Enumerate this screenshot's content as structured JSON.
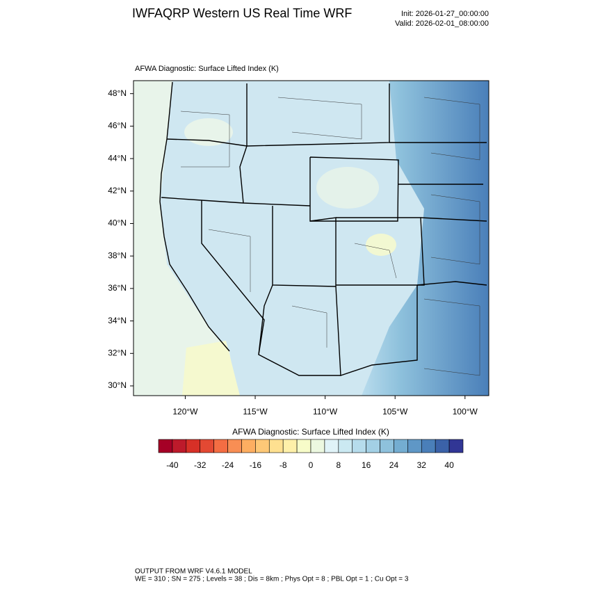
{
  "header": {
    "title": "IWFAQRP Western US Real Time WRF",
    "init": "Init: 2026-01-27_00:00:00",
    "valid": "Valid: 2026-02-01_08:00:00"
  },
  "map": {
    "title": "AFWA Diagnostic: Surface Lifted Index   (K)",
    "latlim": [
      29.4,
      48.8
    ],
    "lonlim": [
      -123.7,
      -98.3
    ],
    "latticks": [
      {
        "value": 48,
        "label": "48°N"
      },
      {
        "value": 46,
        "label": "46°N"
      },
      {
        "value": 44,
        "label": "44°N"
      },
      {
        "value": 42,
        "label": "42°N"
      },
      {
        "value": 40,
        "label": "40°N"
      },
      {
        "value": 38,
        "label": "38°N"
      },
      {
        "value": 36,
        "label": "36°N"
      },
      {
        "value": 34,
        "label": "34°N"
      },
      {
        "value": 32,
        "label": "32°N"
      },
      {
        "value": 30,
        "label": "30°N"
      }
    ],
    "lonticks": [
      {
        "value": -120,
        "label": "120°W"
      },
      {
        "value": -115,
        "label": "115°W"
      },
      {
        "value": -110,
        "label": "110°W"
      },
      {
        "value": -105,
        "label": "105°W"
      },
      {
        "value": -100,
        "label": "100°W"
      }
    ]
  },
  "colorbar": {
    "title": "AFWA Diagnostic: Surface Lifted Index  (K)",
    "range": [
      -44,
      44
    ],
    "ticks": [
      -40,
      -32,
      -24,
      -16,
      -8,
      0,
      8,
      16,
      24,
      32,
      40
    ],
    "colors": [
      "#a50026",
      "#bd1a2b",
      "#d73027",
      "#e34933",
      "#f46d43",
      "#f88e54",
      "#fdae61",
      "#fdc877",
      "#fee090",
      "#fef0a9",
      "#f7fcc9",
      "#ecf8e0",
      "#e0f3f8",
      "#cbe9f2",
      "#b6dcec",
      "#a3d0e5",
      "#8ec1dc",
      "#74add1",
      "#5f97c6",
      "#4a7fb9",
      "#3b62a8",
      "#313695"
    ]
  },
  "footer": {
    "line1": "OUTPUT FROM WRF V4.6.1 MODEL",
    "line2": "WE = 310 ; SN = 275 ; Levels = 38 ; Dis = 8km ; Phys Opt = 8 ; PBL Opt = 1 ; Cu Opt = 3"
  }
}
